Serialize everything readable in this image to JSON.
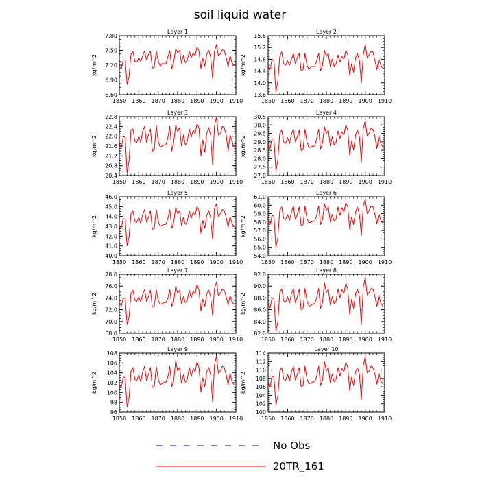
{
  "title": "soil liquid water",
  "chart_data": {
    "type": "line",
    "title": "soil liquid water",
    "x": [
      1850,
      1851,
      1852,
      1853,
      1854,
      1855,
      1856,
      1857,
      1858,
      1859,
      1860,
      1861,
      1862,
      1863,
      1864,
      1865,
      1866,
      1867,
      1868,
      1869,
      1870,
      1871,
      1872,
      1873,
      1874,
      1875,
      1876,
      1877,
      1878,
      1879,
      1880,
      1881,
      1882,
      1883,
      1884,
      1885,
      1886,
      1887,
      1888,
      1889,
      1890,
      1891,
      1892,
      1893,
      1894,
      1895,
      1896,
      1897,
      1898,
      1899,
      1900,
      1901,
      1902,
      1903,
      1904,
      1905,
      1906,
      1907,
      1908,
      1909
    ],
    "xlim": [
      1850,
      1910
    ],
    "xticks": [
      "1850",
      "1860",
      "1870",
      "1880",
      "1890",
      "1900",
      "1910"
    ],
    "legend": [
      {
        "label": "No Obs",
        "color": "#0000cc",
        "style": "dashed"
      },
      {
        "label": "20TR_161",
        "color": "#ff0000",
        "style": "solid"
      }
    ],
    "legend_position": "bottom-center",
    "series_color": "#ff0000",
    "panels": [
      {
        "title": "Layer 1",
        "ylabel": "kg/m^2",
        "ylim": [
          6.6,
          7.8
        ],
        "yticks": [
          "6.60",
          "6.90",
          "7.20",
          "7.50",
          "7.80"
        ],
        "values": [
          7.17,
          7.12,
          7.31,
          7.3,
          6.81,
          6.97,
          7.43,
          7.48,
          7.28,
          7.26,
          7.35,
          7.27,
          7.39,
          7.49,
          7.3,
          7.42,
          7.48,
          7.14,
          7.16,
          7.49,
          7.29,
          7.18,
          7.23,
          7.23,
          7.23,
          7.37,
          7.49,
          7.13,
          7.26,
          7.53,
          7.45,
          7.5,
          7.24,
          7.4,
          7.25,
          7.3,
          7.48,
          7.35,
          7.45,
          7.39,
          7.57,
          7.49,
          7.13,
          7.34,
          7.18,
          7.42,
          7.5,
          7.37,
          6.93,
          7.48,
          7.62,
          7.39,
          7.43,
          7.51,
          7.5,
          7.36,
          7.16,
          7.4,
          7.25,
          7.2
        ]
      },
      {
        "title": "Layer 2",
        "ylabel": "kg/m^2",
        "ylim": [
          13.6,
          15.6
        ],
        "yticks": [
          "13.6",
          "14.0",
          "14.4",
          "14.8",
          "15.2",
          "15.6"
        ],
        "values": [
          14.55,
          14.45,
          14.8,
          14.75,
          13.7,
          14.05,
          14.9,
          15.05,
          14.65,
          14.6,
          14.75,
          14.6,
          14.8,
          15.0,
          14.65,
          14.85,
          15.0,
          14.4,
          14.45,
          15.0,
          14.6,
          14.45,
          14.55,
          14.55,
          14.55,
          14.75,
          15.0,
          14.4,
          14.6,
          15.1,
          14.9,
          15.0,
          14.55,
          14.8,
          14.55,
          14.65,
          14.95,
          14.7,
          14.9,
          14.8,
          15.1,
          14.95,
          14.25,
          14.65,
          14.35,
          14.85,
          15.0,
          14.75,
          14.0,
          14.95,
          15.3,
          14.85,
          14.95,
          15.05,
          15.05,
          14.75,
          14.45,
          14.8,
          14.6,
          14.5
        ]
      },
      {
        "title": "Layer 3",
        "ylabel": "kg/m^2",
        "ylim": [
          20.4,
          22.8
        ],
        "yticks": [
          "20.4",
          "20.8",
          "21.2",
          "21.6",
          "22.0",
          "22.4",
          "22.8"
        ],
        "values": [
          21.7,
          21.5,
          22.0,
          21.95,
          20.5,
          21.0,
          22.25,
          22.3,
          21.8,
          21.75,
          22.0,
          21.75,
          22.2,
          22.4,
          21.75,
          22.05,
          22.3,
          21.4,
          21.45,
          22.45,
          21.8,
          21.55,
          21.6,
          21.65,
          21.65,
          21.95,
          22.4,
          21.4,
          21.75,
          22.45,
          22.2,
          22.35,
          21.6,
          22.05,
          21.65,
          21.8,
          22.3,
          21.95,
          22.25,
          22.1,
          22.5,
          22.35,
          21.2,
          21.85,
          21.35,
          22.1,
          22.35,
          22.05,
          20.85,
          22.4,
          22.8,
          22.05,
          22.1,
          22.4,
          22.35,
          22.05,
          21.4,
          22.05,
          21.8,
          21.55
        ]
      },
      {
        "title": "Layer 4",
        "ylabel": "kg/m^2",
        "ylim": [
          27.0,
          30.5
        ],
        "yticks": [
          "27.0",
          "27.5",
          "28.0",
          "28.5",
          "29.0",
          "29.5",
          "30.0",
          "30.5"
        ],
        "values": [
          28.8,
          28.6,
          29.2,
          29.15,
          27.3,
          27.9,
          29.5,
          29.7,
          29.0,
          28.9,
          29.25,
          28.9,
          29.45,
          29.75,
          29.0,
          29.3,
          29.7,
          28.5,
          28.55,
          29.75,
          29.0,
          28.65,
          28.7,
          28.75,
          28.75,
          29.2,
          29.75,
          28.55,
          28.95,
          29.9,
          29.5,
          29.7,
          28.75,
          29.3,
          28.8,
          29.0,
          29.65,
          29.2,
          29.6,
          29.4,
          30.0,
          29.7,
          28.2,
          29.05,
          28.5,
          29.4,
          29.7,
          29.3,
          27.8,
          29.8,
          30.25,
          29.35,
          29.5,
          29.8,
          29.75,
          29.3,
          28.6,
          29.35,
          28.9,
          28.7
        ]
      },
      {
        "title": "Layer 5",
        "ylabel": "kg/m^2",
        "ylim": [
          40.0,
          46.0
        ],
        "yticks": [
          "40.0",
          "41.0",
          "42.0",
          "43.0",
          "44.0",
          "45.0",
          "46.0"
        ],
        "values": [
          43.1,
          42.8,
          43.8,
          43.7,
          41.0,
          41.9,
          44.3,
          44.6,
          43.5,
          43.4,
          43.9,
          43.3,
          44.2,
          44.7,
          43.4,
          43.9,
          44.6,
          42.7,
          42.8,
          44.7,
          43.5,
          43.0,
          43.1,
          43.2,
          43.2,
          43.8,
          44.7,
          42.8,
          43.4,
          44.9,
          44.3,
          44.6,
          43.1,
          43.9,
          43.2,
          43.5,
          44.6,
          43.8,
          44.5,
          44.1,
          45.0,
          44.6,
          42.3,
          43.6,
          42.8,
          44.1,
          44.6,
          43.9,
          41.7,
          44.8,
          45.3,
          44.0,
          44.3,
          44.7,
          44.6,
          43.9,
          42.9,
          44.0,
          43.3,
          43.0
        ]
      },
      {
        "title": "Layer 6",
        "ylabel": "kg/m^2",
        "ylim": [
          54.0,
          61.0
        ],
        "yticks": [
          "54.0",
          "55.0",
          "56.0",
          "57.0",
          "58.0",
          "59.0",
          "60.0",
          "61.0"
        ],
        "values": [
          58.1,
          57.7,
          58.8,
          58.7,
          55.0,
          56.1,
          59.4,
          59.8,
          58.4,
          58.3,
          58.9,
          58.2,
          59.2,
          59.9,
          58.3,
          58.9,
          59.8,
          57.6,
          57.7,
          59.9,
          58.4,
          57.9,
          58.0,
          58.1,
          58.1,
          58.8,
          59.9,
          57.7,
          58.3,
          60.2,
          59.4,
          59.8,
          58.0,
          58.9,
          58.1,
          58.4,
          59.8,
          58.8,
          59.7,
          59.2,
          60.3,
          59.8,
          57.1,
          58.6,
          57.7,
          59.2,
          59.8,
          58.9,
          56.4,
          60.0,
          60.7,
          59.0,
          59.4,
          59.9,
          59.8,
          58.9,
          57.8,
          59.0,
          58.2,
          57.9
        ]
      },
      {
        "title": "Layer 7",
        "ylabel": "kg/m^2",
        "ylim": [
          68.0,
          78.0
        ],
        "yticks": [
          "68.0",
          "70.0",
          "72.0",
          "74.0",
          "76.0",
          "78.0"
        ],
        "values": [
          73.2,
          72.6,
          74.0,
          73.9,
          69.5,
          70.7,
          74.8,
          75.3,
          73.6,
          73.4,
          74.2,
          73.3,
          74.6,
          75.4,
          73.4,
          74.2,
          75.3,
          72.4,
          72.6,
          75.4,
          73.6,
          72.9,
          73.0,
          73.2,
          73.2,
          74.0,
          75.4,
          72.6,
          73.4,
          76.0,
          74.8,
          75.3,
          73.0,
          74.2,
          73.2,
          73.6,
          75.3,
          74.0,
          75.2,
          74.6,
          76.3,
          75.3,
          71.8,
          73.8,
          72.6,
          74.6,
          75.3,
          74.2,
          71.0,
          75.6,
          76.7,
          74.4,
          74.8,
          75.4,
          75.3,
          74.2,
          72.8,
          74.4,
          73.3,
          72.9
        ]
      },
      {
        "title": "Layer 8",
        "ylabel": "kg/m^2",
        "ylim": [
          82.0,
          92.0
        ],
        "yticks": [
          "82.0",
          "84.0",
          "86.0",
          "88.0",
          "90.0",
          "92.0"
        ],
        "values": [
          87.0,
          86.3,
          88.0,
          87.9,
          82.4,
          83.9,
          88.9,
          89.5,
          87.5,
          87.3,
          88.2,
          87.1,
          88.7,
          89.6,
          87.2,
          88.2,
          89.5,
          86.0,
          86.2,
          89.6,
          87.5,
          86.6,
          86.7,
          87.0,
          87.0,
          88.0,
          89.6,
          86.2,
          87.2,
          90.6,
          88.9,
          89.5,
          86.8,
          88.2,
          87.0,
          87.5,
          89.5,
          88.0,
          89.4,
          88.7,
          90.5,
          89.5,
          85.2,
          87.8,
          86.2,
          88.7,
          89.5,
          88.2,
          83.5,
          89.9,
          91.4,
          88.5,
          88.9,
          89.6,
          89.5,
          88.2,
          86.5,
          88.5,
          87.1,
          86.6
        ]
      },
      {
        "title": "Layer 9",
        "ylabel": "kg/m^2",
        "ylim": [
          96,
          108
        ],
        "yticks": [
          "96",
          "98",
          "100",
          "102",
          "104",
          "106",
          "108"
        ],
        "values": [
          101.7,
          100.9,
          103.2,
          103.0,
          97.1,
          98.8,
          104.4,
          105.1,
          102.7,
          102.4,
          103.6,
          102.2,
          104.2,
          105.3,
          102.4,
          103.6,
          105.1,
          101.0,
          101.2,
          105.3,
          102.7,
          101.6,
          101.8,
          102.1,
          102.1,
          103.2,
          105.3,
          101.2,
          102.4,
          106.5,
          104.4,
          105.1,
          101.9,
          103.6,
          102.1,
          102.7,
          105.1,
          103.2,
          104.9,
          104.2,
          106.2,
          105.1,
          100.1,
          103.0,
          101.2,
          104.2,
          105.1,
          103.6,
          98.1,
          105.6,
          107.4,
          103.9,
          104.4,
          105.3,
          105.1,
          103.6,
          101.5,
          103.9,
          102.2,
          101.6
        ]
      },
      {
        "title": "Layer 10",
        "ylabel": "kg/m^2",
        "ylim": [
          100,
          114
        ],
        "yticks": [
          "100",
          "102",
          "104",
          "106",
          "108",
          "110",
          "112",
          "114"
        ],
        "values": [
          107.0,
          106.0,
          108.5,
          108.3,
          101.8,
          103.7,
          109.8,
          110.6,
          107.9,
          107.6,
          109.0,
          107.4,
          109.6,
          110.9,
          107.6,
          109.0,
          110.6,
          106.1,
          106.3,
          110.9,
          107.9,
          106.7,
          106.9,
          107.2,
          107.2,
          108.5,
          110.9,
          106.3,
          107.6,
          112.0,
          109.8,
          110.6,
          107.0,
          109.0,
          107.2,
          107.9,
          110.6,
          108.5,
          110.4,
          109.6,
          111.8,
          110.6,
          105.1,
          108.3,
          106.3,
          109.6,
          110.6,
          109.0,
          103.0,
          111.1,
          113.1,
          109.3,
          109.8,
          110.9,
          110.6,
          109.0,
          106.6,
          109.3,
          107.4,
          106.7
        ]
      }
    ]
  }
}
